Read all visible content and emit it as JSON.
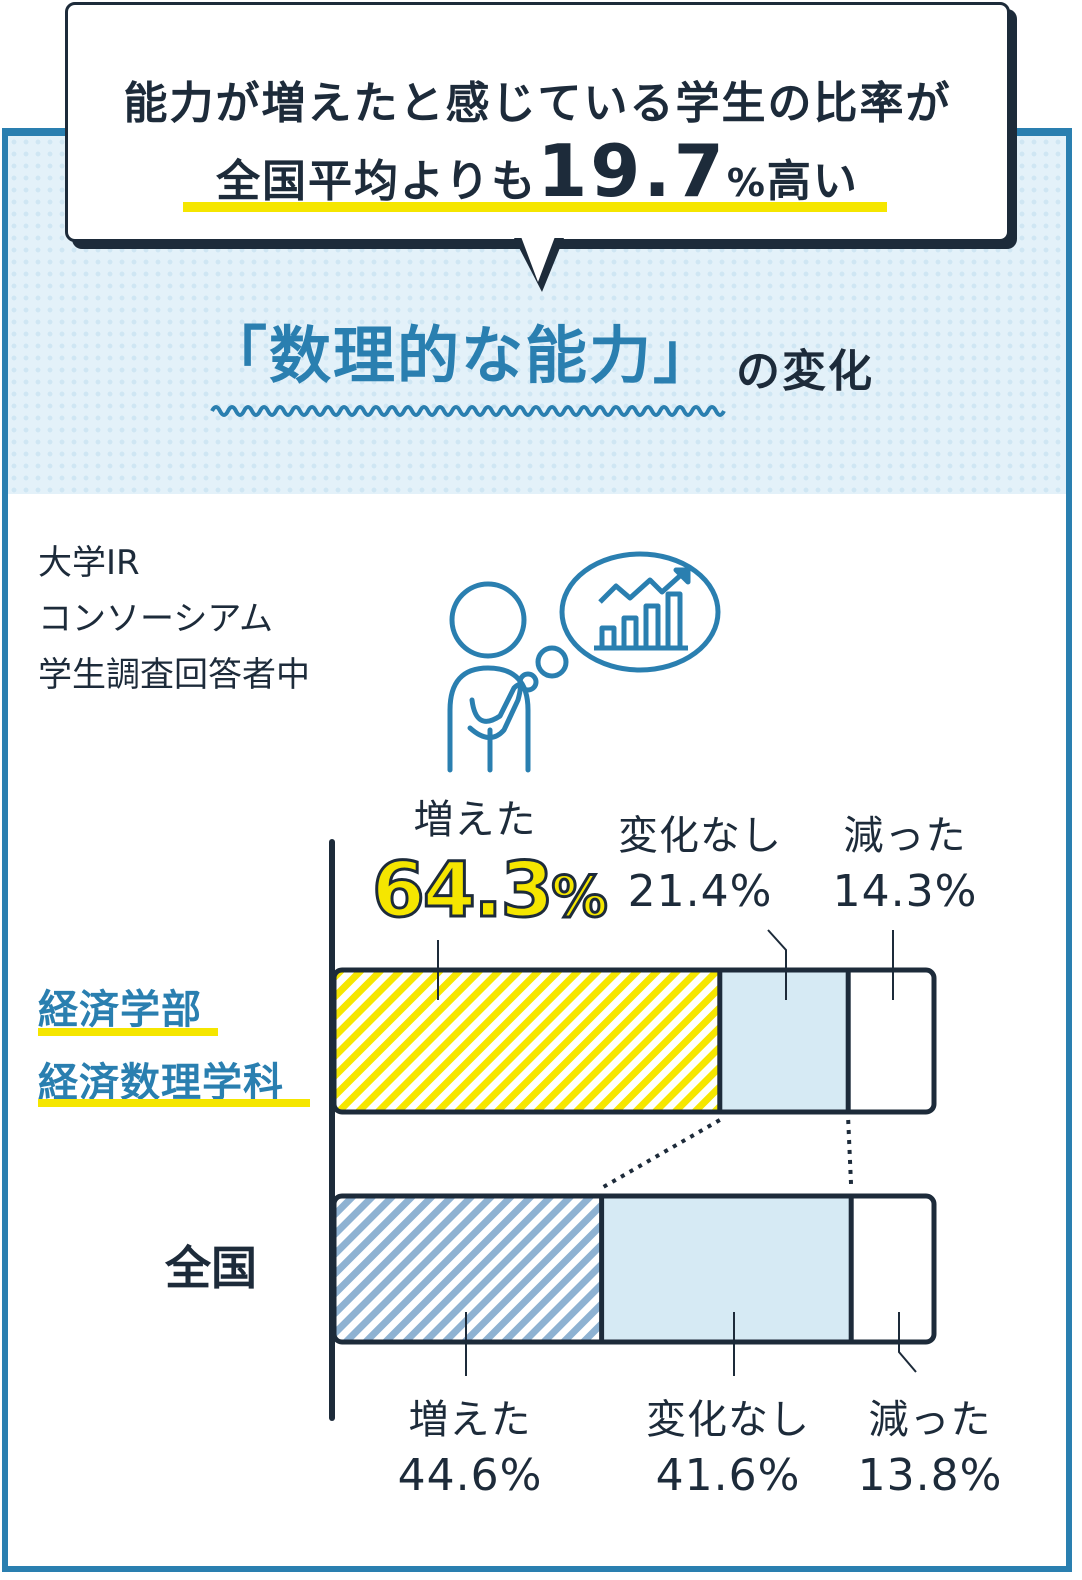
{
  "bubble": {
    "line1": "能力が増えたと感じている学生の比率が",
    "line2_prefix": "全国平均よりも",
    "line2_number": "19.7",
    "line2_pct": "%",
    "line2_suffix": "高い"
  },
  "heading": {
    "main": "「数理的な能力」",
    "suffix": "の変化"
  },
  "source": {
    "line1": "大学IR",
    "line2": "コンソーシアム",
    "line3": "学生調査回答者中"
  },
  "icons": {
    "person": "thinking-person-icon",
    "chart": "growth-chart-icon"
  },
  "colors": {
    "accent_blue": "#2a7fb0",
    "highlight_yellow": "#f5e600",
    "pale_blue": "#d6eaf4",
    "dark": "#1d2b3a",
    "hatch_blue": "#8eb2d2"
  },
  "chart_data": {
    "type": "bar",
    "stacked": true,
    "orientation": "horizontal",
    "categories": [
      "経済学部 経済数理学科",
      "全国"
    ],
    "category_lines": {
      "faculty_line1": "経済学部",
      "faculty_line2": "経済数理学科",
      "national": "全国"
    },
    "series": [
      {
        "name": "増えた",
        "values": [
          64.3,
          44.6
        ],
        "labels": [
          "64.3%",
          "44.6%"
        ]
      },
      {
        "name": "変化なし",
        "values": [
          21.4,
          41.6
        ],
        "labels": [
          "21.4%",
          "41.6%"
        ]
      },
      {
        "name": "減った",
        "values": [
          14.3,
          13.8
        ],
        "labels": [
          "14.3%",
          "13.8%"
        ]
      }
    ],
    "hero": {
      "number": "64.3",
      "pct": "%"
    },
    "xlim": [
      0,
      100
    ]
  }
}
